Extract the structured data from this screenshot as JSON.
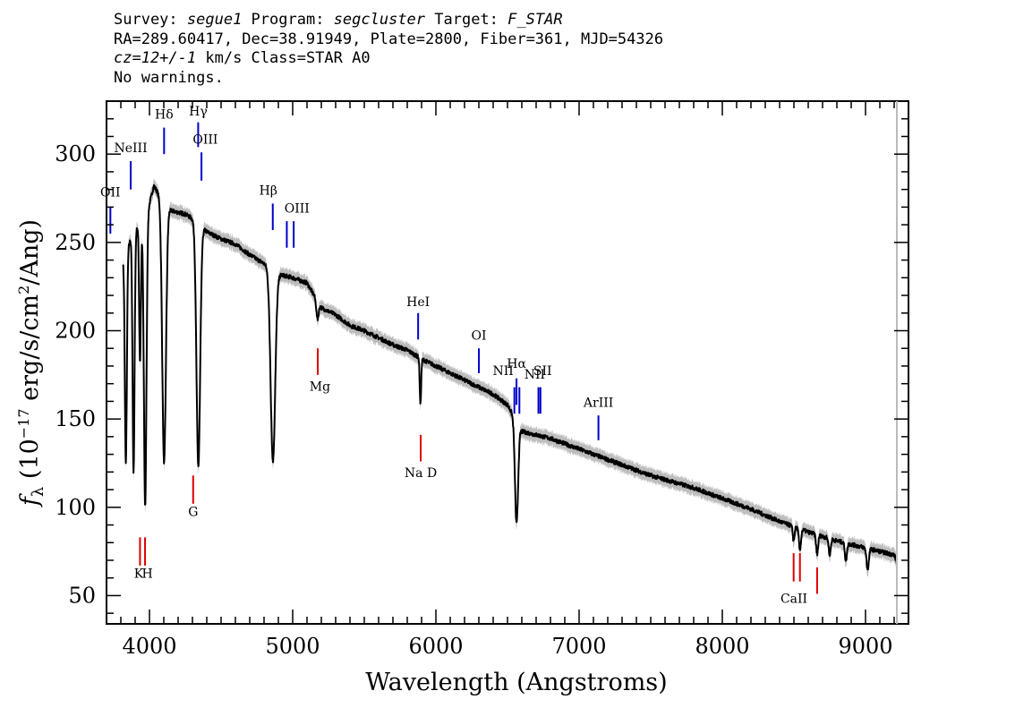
{
  "header": {
    "survey_label": "Survey: ",
    "survey": "segue1",
    "program_label": " Program: ",
    "program": "segcluster",
    "target_label": " Target: ",
    "target": "F_STAR",
    "line2": "RA=289.60417, Dec=38.91949, Plate=2800, Fiber=361, MJD=54326",
    "cz": "cz=12+/-1",
    "cz_rest": " km/s Class=STAR A0",
    "line4": "No warnings."
  },
  "chart_data": {
    "type": "line",
    "xlabel": "Wavelength (Angstroms)",
    "ylabel": "f_λ (10^-17 erg/s/cm^2/Ang)",
    "ylabel_parts": {
      "f": "f",
      "lambda": "λ",
      "pre": " (10",
      "exp1": "−17",
      "mid": " erg/s/cm",
      "exp2": "2",
      "post": "/Ang)"
    },
    "xlim": [
      3700,
      9300
    ],
    "ylim": [
      34,
      330
    ],
    "x_ticks": [
      4000,
      5000,
      6000,
      7000,
      8000,
      9000
    ],
    "x_tick_labels": [
      "4000",
      "5000",
      "6000",
      "7000",
      "8000",
      "9000"
    ],
    "y_ticks": [
      50,
      100,
      150,
      200,
      250,
      300
    ],
    "y_tick_labels": [
      "50",
      "100",
      "150",
      "200",
      "250",
      "300"
    ],
    "continuum_knots": [
      [
        3815,
        240
      ],
      [
        3850,
        248
      ],
      [
        3900,
        257
      ],
      [
        3950,
        262
      ],
      [
        4000,
        272
      ],
      [
        4030,
        282
      ],
      [
        4060,
        278
      ],
      [
        4150,
        268
      ],
      [
        4250,
        266
      ],
      [
        4330,
        262
      ],
      [
        4400,
        256
      ],
      [
        4500,
        252
      ],
      [
        4600,
        249
      ],
      [
        4700,
        243
      ],
      [
        4800,
        238
      ],
      [
        4900,
        232
      ],
      [
        5000,
        230
      ],
      [
        5100,
        227
      ],
      [
        5200,
        213
      ],
      [
        5300,
        209
      ],
      [
        5400,
        203
      ],
      [
        5500,
        200
      ],
      [
        5600,
        196
      ],
      [
        5700,
        192
      ],
      [
        5800,
        189
      ],
      [
        5900,
        184
      ],
      [
        6000,
        180
      ],
      [
        6200,
        172
      ],
      [
        6400,
        164
      ],
      [
        6500,
        158
      ],
      [
        6600,
        143
      ],
      [
        6700,
        141
      ],
      [
        6800,
        139
      ],
      [
        7000,
        133
      ],
      [
        7200,
        127
      ],
      [
        7500,
        118
      ],
      [
        7800,
        111
      ],
      [
        8000,
        105
      ],
      [
        8200,
        99
      ],
      [
        8400,
        92
      ],
      [
        8600,
        86
      ],
      [
        8800,
        81
      ],
      [
        9000,
        77
      ],
      [
        9200,
        73
      ],
      [
        9220,
        69
      ]
    ],
    "absorption_lines": [
      {
        "name": "H-eta",
        "wave": 3835,
        "depth": 120,
        "width": 7
      },
      {
        "name": "H-zeta",
        "wave": 3889,
        "depth": 135,
        "width": 7
      },
      {
        "name": "CaII K",
        "wave": 3934,
        "depth": 78,
        "width": 6
      },
      {
        "name": "H-epsilon",
        "wave": 3970,
        "depth": 165,
        "width": 9
      },
      {
        "name": "H-delta",
        "wave": 4102,
        "depth": 148,
        "width": 13
      },
      {
        "name": "H-gamma",
        "wave": 4341,
        "depth": 138,
        "width": 13
      },
      {
        "name": "H-beta",
        "wave": 4862,
        "depth": 108,
        "width": 16
      },
      {
        "name": "Mg",
        "wave": 5173,
        "depth": 10,
        "width": 8
      },
      {
        "name": "Na D",
        "wave": 5892,
        "depth": 26,
        "width": 5
      },
      {
        "name": "H-alpha",
        "wave": 6563,
        "depth": 58,
        "width": 11
      },
      {
        "name": "CaII 8498",
        "wave": 8498,
        "depth": 8,
        "width": 6
      },
      {
        "name": "CaII 8542",
        "wave": 8542,
        "depth": 12,
        "width": 7
      },
      {
        "name": "CaII 8662",
        "wave": 8662,
        "depth": 11,
        "width": 7
      },
      {
        "name": "Paschen 8750",
        "wave": 8750,
        "depth": 9,
        "width": 7
      },
      {
        "name": "Paschen 8863",
        "wave": 8863,
        "depth": 10,
        "width": 7
      },
      {
        "name": "Paschen 9015",
        "wave": 9015,
        "depth": 12,
        "width": 8
      }
    ],
    "error_band": 4,
    "line_markers": [
      {
        "label": "OII",
        "wave": 3727,
        "y1": 255,
        "y2": 270,
        "color": "#0000cc",
        "label_y": 275
      },
      {
        "label": "NeIII",
        "wave": 3869,
        "y1": 280,
        "y2": 296,
        "color": "#0000cc",
        "label_y": 300
      },
      {
        "label": "Hδ",
        "wave": 4102,
        "y1": 300,
        "y2": 315,
        "color": "#0000cc",
        "label_y": 320
      },
      {
        "label": "Hγ",
        "wave": 4340,
        "y1": 304,
        "y2": 318,
        "color": "#0000cc",
        "label_y": 321
      },
      {
        "label": "OIII",
        "wave": 4363,
        "y1": 285,
        "y2": 301,
        "color": "#0000cc",
        "label_y": 306
      },
      {
        "label": "Hβ",
        "wave": 4861,
        "y1": 257,
        "y2": 272,
        "color": "#0000cc",
        "label_y": 277
      },
      {
        "label": "OIII",
        "wave": 4959,
        "y1": 247,
        "y2": 262,
        "color": "#0000cc",
        "label_y": 266
      },
      {
        "label": "OIII",
        "wave": 5007,
        "y1": 247,
        "y2": 262,
        "color": "#0000cc",
        "label_y": 266
      },
      {
        "label": "HeI",
        "wave": 5876,
        "y1": 195,
        "y2": 210,
        "color": "#0000cc",
        "label_y": 214
      },
      {
        "label": "OI",
        "wave": 6300,
        "y1": 176,
        "y2": 190,
        "color": "#0000cc",
        "label_y": 195
      },
      {
        "label": "NII",
        "wave": 6548,
        "y1": 153,
        "y2": 168,
        "color": "#0000cc",
        "label_y": 173
      },
      {
        "label": "Hα",
        "wave": 6563,
        "y1": 158,
        "y2": 173,
        "color": "#0000cc",
        "label_y": 179
      },
      {
        "label": "NII",
        "wave": 6583,
        "y1": 153,
        "y2": 168,
        "color": "#0000cc",
        "label_y": 173
      },
      {
        "label": "SII",
        "wave": 6716,
        "y1": 153,
        "y2": 168,
        "color": "#0000cc",
        "label_y": 173
      },
      {
        "label": "SII",
        "wave": 6730,
        "y1": 153,
        "y2": 168,
        "color": "#0000cc",
        "label_y": 173
      },
      {
        "label": "ArIII",
        "wave": 7135,
        "y1": 138,
        "y2": 152,
        "color": "#0000cc",
        "label_y": 156
      },
      {
        "label": "K",
        "wave": 3934,
        "y1": 67,
        "y2": 83,
        "color": "#dd0000",
        "label_y": 60
      },
      {
        "label": "H",
        "wave": 3969,
        "y1": 67,
        "y2": 83,
        "color": "#dd0000",
        "label_y": 60
      },
      {
        "label": "G",
        "wave": 4305,
        "y1": 102,
        "y2": 118,
        "color": "#dd0000",
        "label_y": 95
      },
      {
        "label": "Mg",
        "wave": 5175,
        "y1": 175,
        "y2": 190,
        "color": "#dd0000",
        "label_y": 166
      },
      {
        "label": "Na D",
        "wave": 5894,
        "y1": 126,
        "y2": 141,
        "color": "#dd0000",
        "label_y": 117
      },
      {
        "label": "CaII",
        "wave": 8498,
        "y1": 58,
        "y2": 74,
        "color": "#dd0000",
        "label_y": 45
      },
      {
        "label": "CaII",
        "wave": 8542,
        "y1": 58,
        "y2": 74,
        "color": "#dd0000",
        "label_y": 45
      },
      {
        "label": "CaII",
        "wave": 8662,
        "y1": 51,
        "y2": 66,
        "color": "#dd0000",
        "label_y": 45
      }
    ],
    "marker_labels": [
      {
        "text": "OII",
        "wave": 3727,
        "y": 276
      },
      {
        "text": "NeIII",
        "wave": 3869,
        "y": 301
      },
      {
        "text": "Hδ",
        "wave": 4102,
        "y": 320
      },
      {
        "text": "Hγ",
        "wave": 4340,
        "y": 322
      },
      {
        "text": "OIII",
        "wave": 4390,
        "y": 306
      },
      {
        "text": "Hβ",
        "wave": 4830,
        "y": 277
      },
      {
        "text": "OIII",
        "wave": 5030,
        "y": 267
      },
      {
        "text": "HeI",
        "wave": 5876,
        "y": 214
      },
      {
        "text": "OI",
        "wave": 6300,
        "y": 195
      },
      {
        "text": "NII",
        "wave": 6470,
        "y": 175
      },
      {
        "text": "Hα",
        "wave": 6563,
        "y": 179
      },
      {
        "text": "NII",
        "wave": 6690,
        "y": 173
      },
      {
        "text": "SII",
        "wave": 6745,
        "y": 175
      },
      {
        "text": "ArIII",
        "wave": 7135,
        "y": 157
      },
      {
        "text": "K",
        "wave": 3925,
        "y": 60
      },
      {
        "text": "H",
        "wave": 3985,
        "y": 60
      },
      {
        "text": "G",
        "wave": 4305,
        "y": 95
      },
      {
        "text": "Mg",
        "wave": 5190,
        "y": 166
      },
      {
        "text": "Na  D",
        "wave": 5894,
        "y": 117
      },
      {
        "text": "CaII",
        "wave": 8500,
        "y": 46
      }
    ]
  }
}
